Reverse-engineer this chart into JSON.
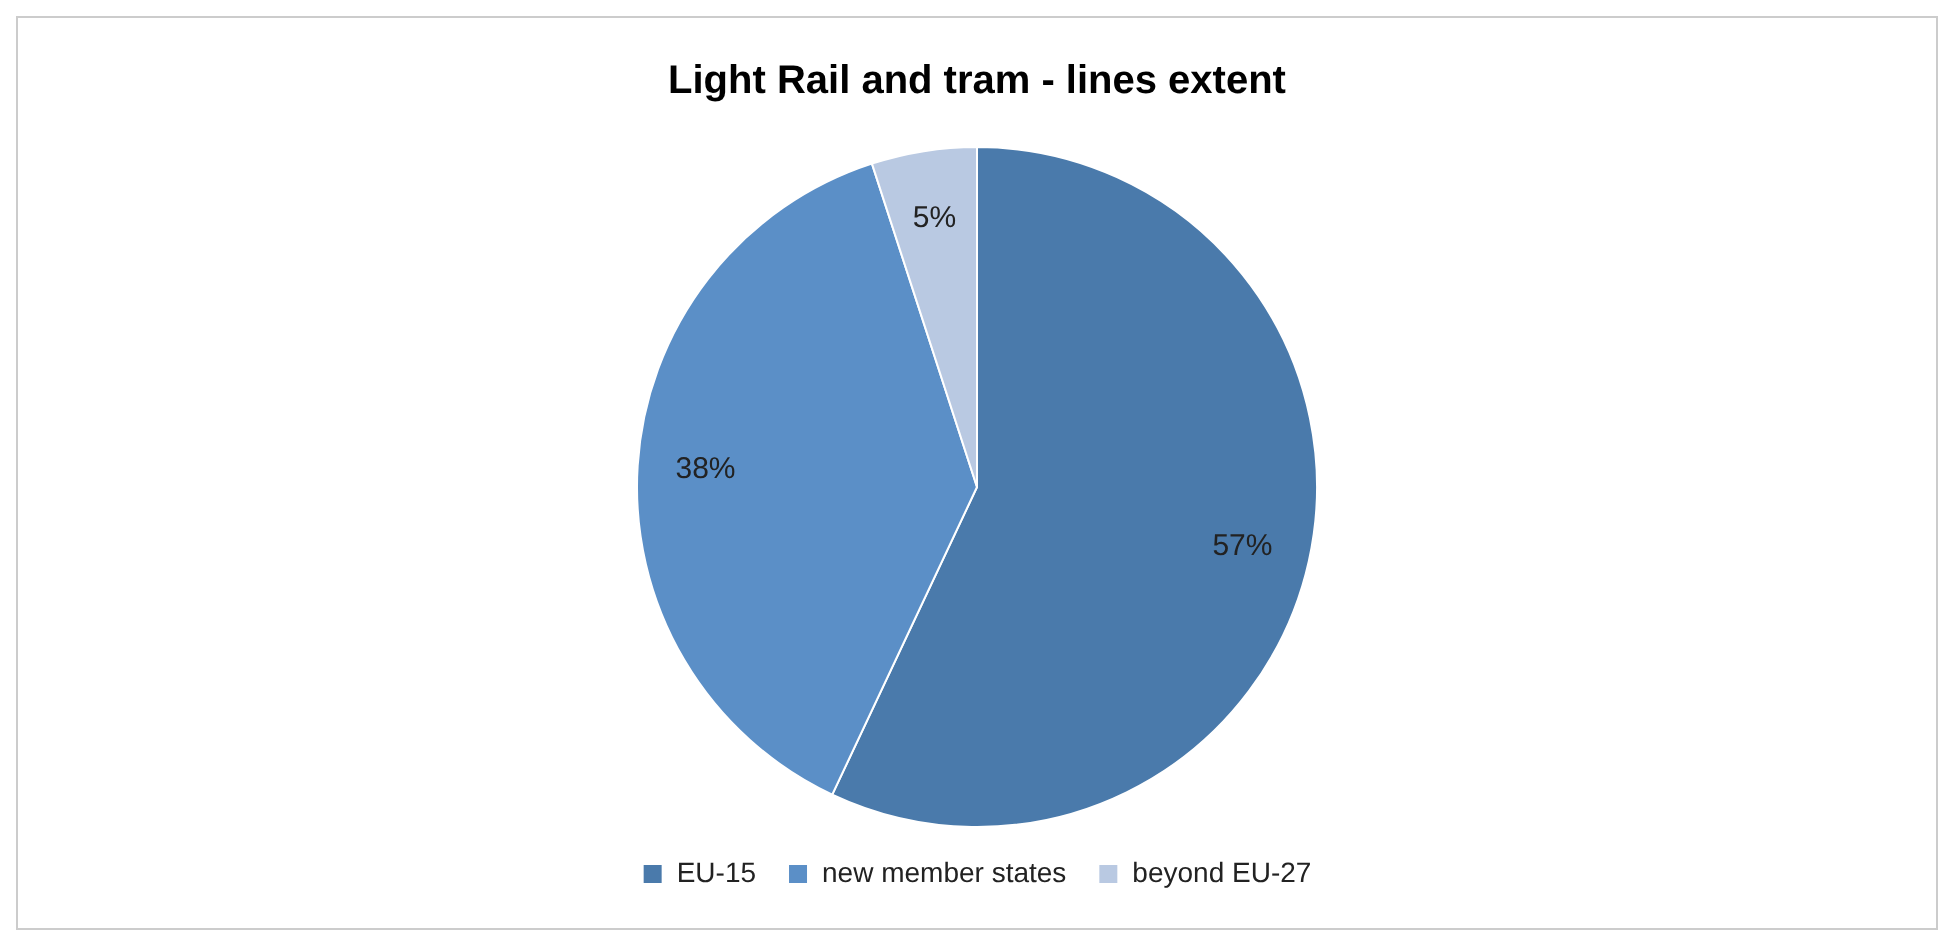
{
  "chart_data": {
    "type": "pie",
    "title": "Light Rail and tram - lines extent",
    "categories": [
      "EU-15",
      "new member states",
      "beyond EU-27"
    ],
    "values": [
      57,
      38,
      5
    ],
    "value_labels": [
      "57%",
      "38%",
      "5%"
    ],
    "colors": [
      "#4a7aab",
      "#5b8fc7",
      "#b9c9e2"
    ],
    "legend": "bottom"
  }
}
